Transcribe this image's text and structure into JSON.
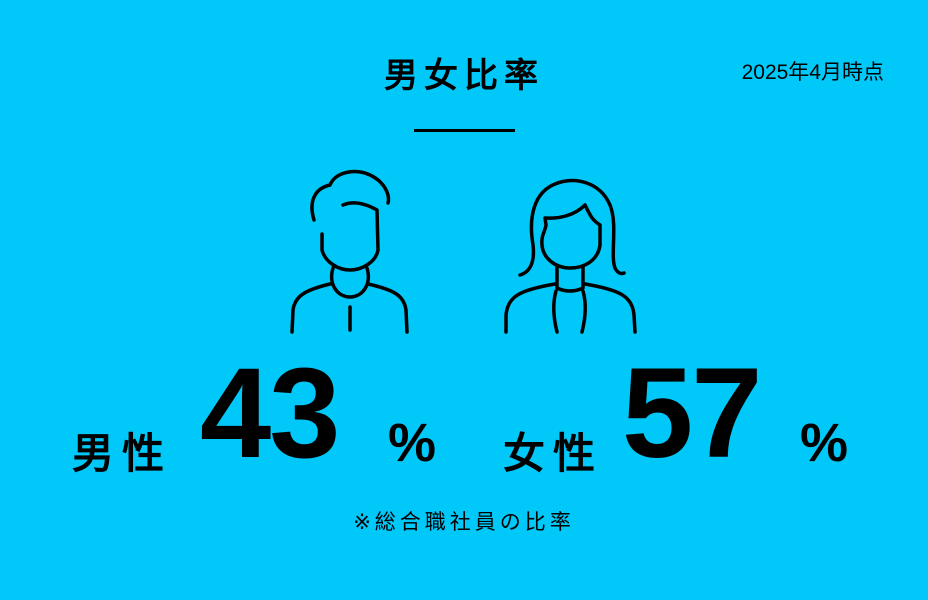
{
  "title": "男女比率",
  "date": "2025年4月時点",
  "male": {
    "label": "男性",
    "value": "43",
    "unit": "%",
    "icon": "man-icon"
  },
  "female": {
    "label": "女性",
    "value": "57",
    "unit": "%",
    "icon": "woman-icon"
  },
  "note": "※総合職社員の比率",
  "colors": {
    "background": "#00c8f8",
    "foreground": "#000000"
  }
}
